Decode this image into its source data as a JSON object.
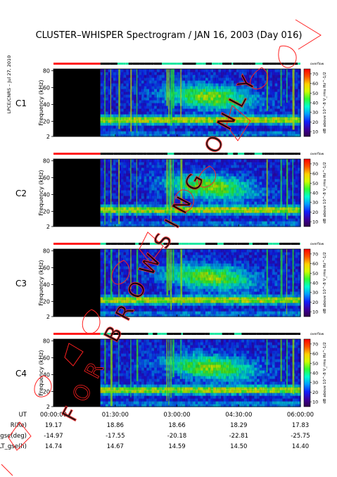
{
  "chart_data": {
    "type": "heatmap",
    "title": "CLUSTER–WHISPER Spectrogram / JAN 16, 2003 (Day 016)",
    "credit": "LPCE/CNRS – Jul 27, 2010",
    "watermark": "FOR BROWSING ONLY",
    "panels": [
      {
        "name": "C1",
        "label_color": "#000000"
      },
      {
        "name": "C2",
        "label_color": "#000000"
      },
      {
        "name": "C3",
        "label_color": "#2ec43a"
      },
      {
        "name": "C4",
        "label_color": "#000000"
      }
    ],
    "ylabel": "Frequency (kHz)",
    "y_ticks": [
      2,
      20,
      40,
      60,
      80
    ],
    "ylim": [
      2,
      82
    ],
    "colorbar": {
      "label": "dB above 10^-8 V_rms Hz^-1/2",
      "ticks": [
        10,
        20,
        30,
        40,
        50,
        60,
        70
      ],
      "range": [
        5,
        75
      ],
      "marker_label": "overflow",
      "colors": [
        "#30004a",
        "#3a00a0",
        "#1020ff",
        "#00a0ff",
        "#00ffd0",
        "#30ff30",
        "#d0ff00",
        "#ffd000",
        "#ff5000",
        "#ff0000"
      ]
    },
    "x_ticks": [
      "00:00:00",
      "01:30:00",
      "03:00:00",
      "04:30:00",
      "06:00:00"
    ],
    "data_start_fraction": 0.19,
    "ephemeris": [
      {
        "label": "UT",
        "values": [
          "00:00:00",
          "01:30:00",
          "03:00:00",
          "04:30:00",
          "06:00:00"
        ]
      },
      {
        "label": "R(Re)",
        "values": [
          "19.17",
          "18.86",
          "18.66",
          "18.29",
          "17.83"
        ]
      },
      {
        "label": "Lat_gse(deg)",
        "values": [
          "-14.97",
          "-17.55",
          "-20.18",
          "-22.81",
          "-25.75"
        ]
      },
      {
        "label": "LT_gse(h)",
        "values": [
          "14.74",
          "14.67",
          "14.59",
          "14.50",
          "14.40"
        ]
      }
    ]
  }
}
